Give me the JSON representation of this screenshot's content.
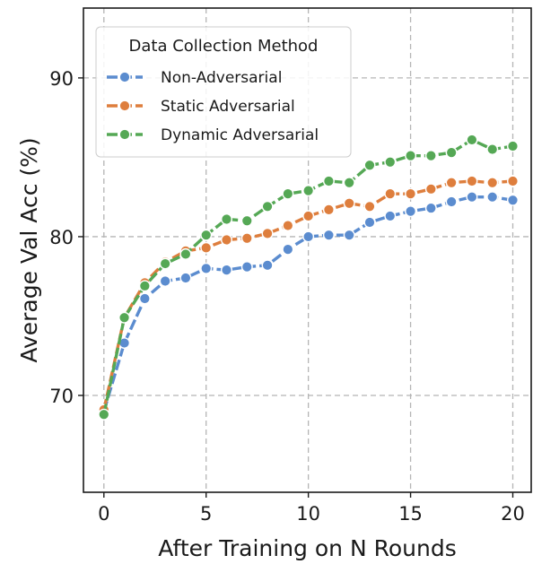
{
  "chart_data": {
    "type": "line",
    "xlabel": "After Training on N Rounds",
    "ylabel": "Average Val Acc (%)",
    "xlim": [
      -1,
      20.9
    ],
    "ylim": [
      63.9,
      94.4
    ],
    "x_ticks": [
      0,
      5,
      10,
      15,
      20
    ],
    "y_ticks": [
      70,
      80,
      90
    ],
    "grid": true,
    "grid_style": "dashed",
    "legend": {
      "title": "Data Collection Method",
      "position": "top-left"
    },
    "x": [
      0,
      1,
      2,
      3,
      4,
      5,
      6,
      7,
      8,
      9,
      10,
      11,
      12,
      13,
      14,
      15,
      16,
      17,
      18,
      19,
      20
    ],
    "series": [
      {
        "name": "Non-Adversarial",
        "color": "#5b8ccf",
        "values": [
          69.0,
          73.3,
          76.1,
          77.2,
          77.4,
          78.0,
          77.9,
          78.1,
          78.2,
          79.2,
          80.0,
          80.1,
          80.1,
          80.9,
          81.3,
          81.6,
          81.8,
          82.2,
          82.5,
          82.5,
          82.3
        ]
      },
      {
        "name": "Static Adversarial",
        "color": "#de7e3d",
        "values": [
          69.1,
          74.9,
          77.1,
          78.4,
          79.1,
          79.3,
          79.8,
          79.9,
          80.2,
          80.7,
          81.3,
          81.7,
          82.1,
          81.9,
          82.7,
          82.7,
          83.0,
          83.4,
          83.5,
          83.4,
          83.5
        ]
      },
      {
        "name": "Dynamic Adversarial",
        "color": "#55a855",
        "values": [
          68.8,
          74.9,
          76.9,
          78.3,
          78.9,
          80.1,
          81.1,
          81.0,
          81.9,
          82.7,
          82.9,
          83.5,
          83.4,
          84.5,
          84.7,
          85.1,
          85.1,
          85.3,
          86.1,
          85.5,
          85.7
        ]
      }
    ]
  }
}
